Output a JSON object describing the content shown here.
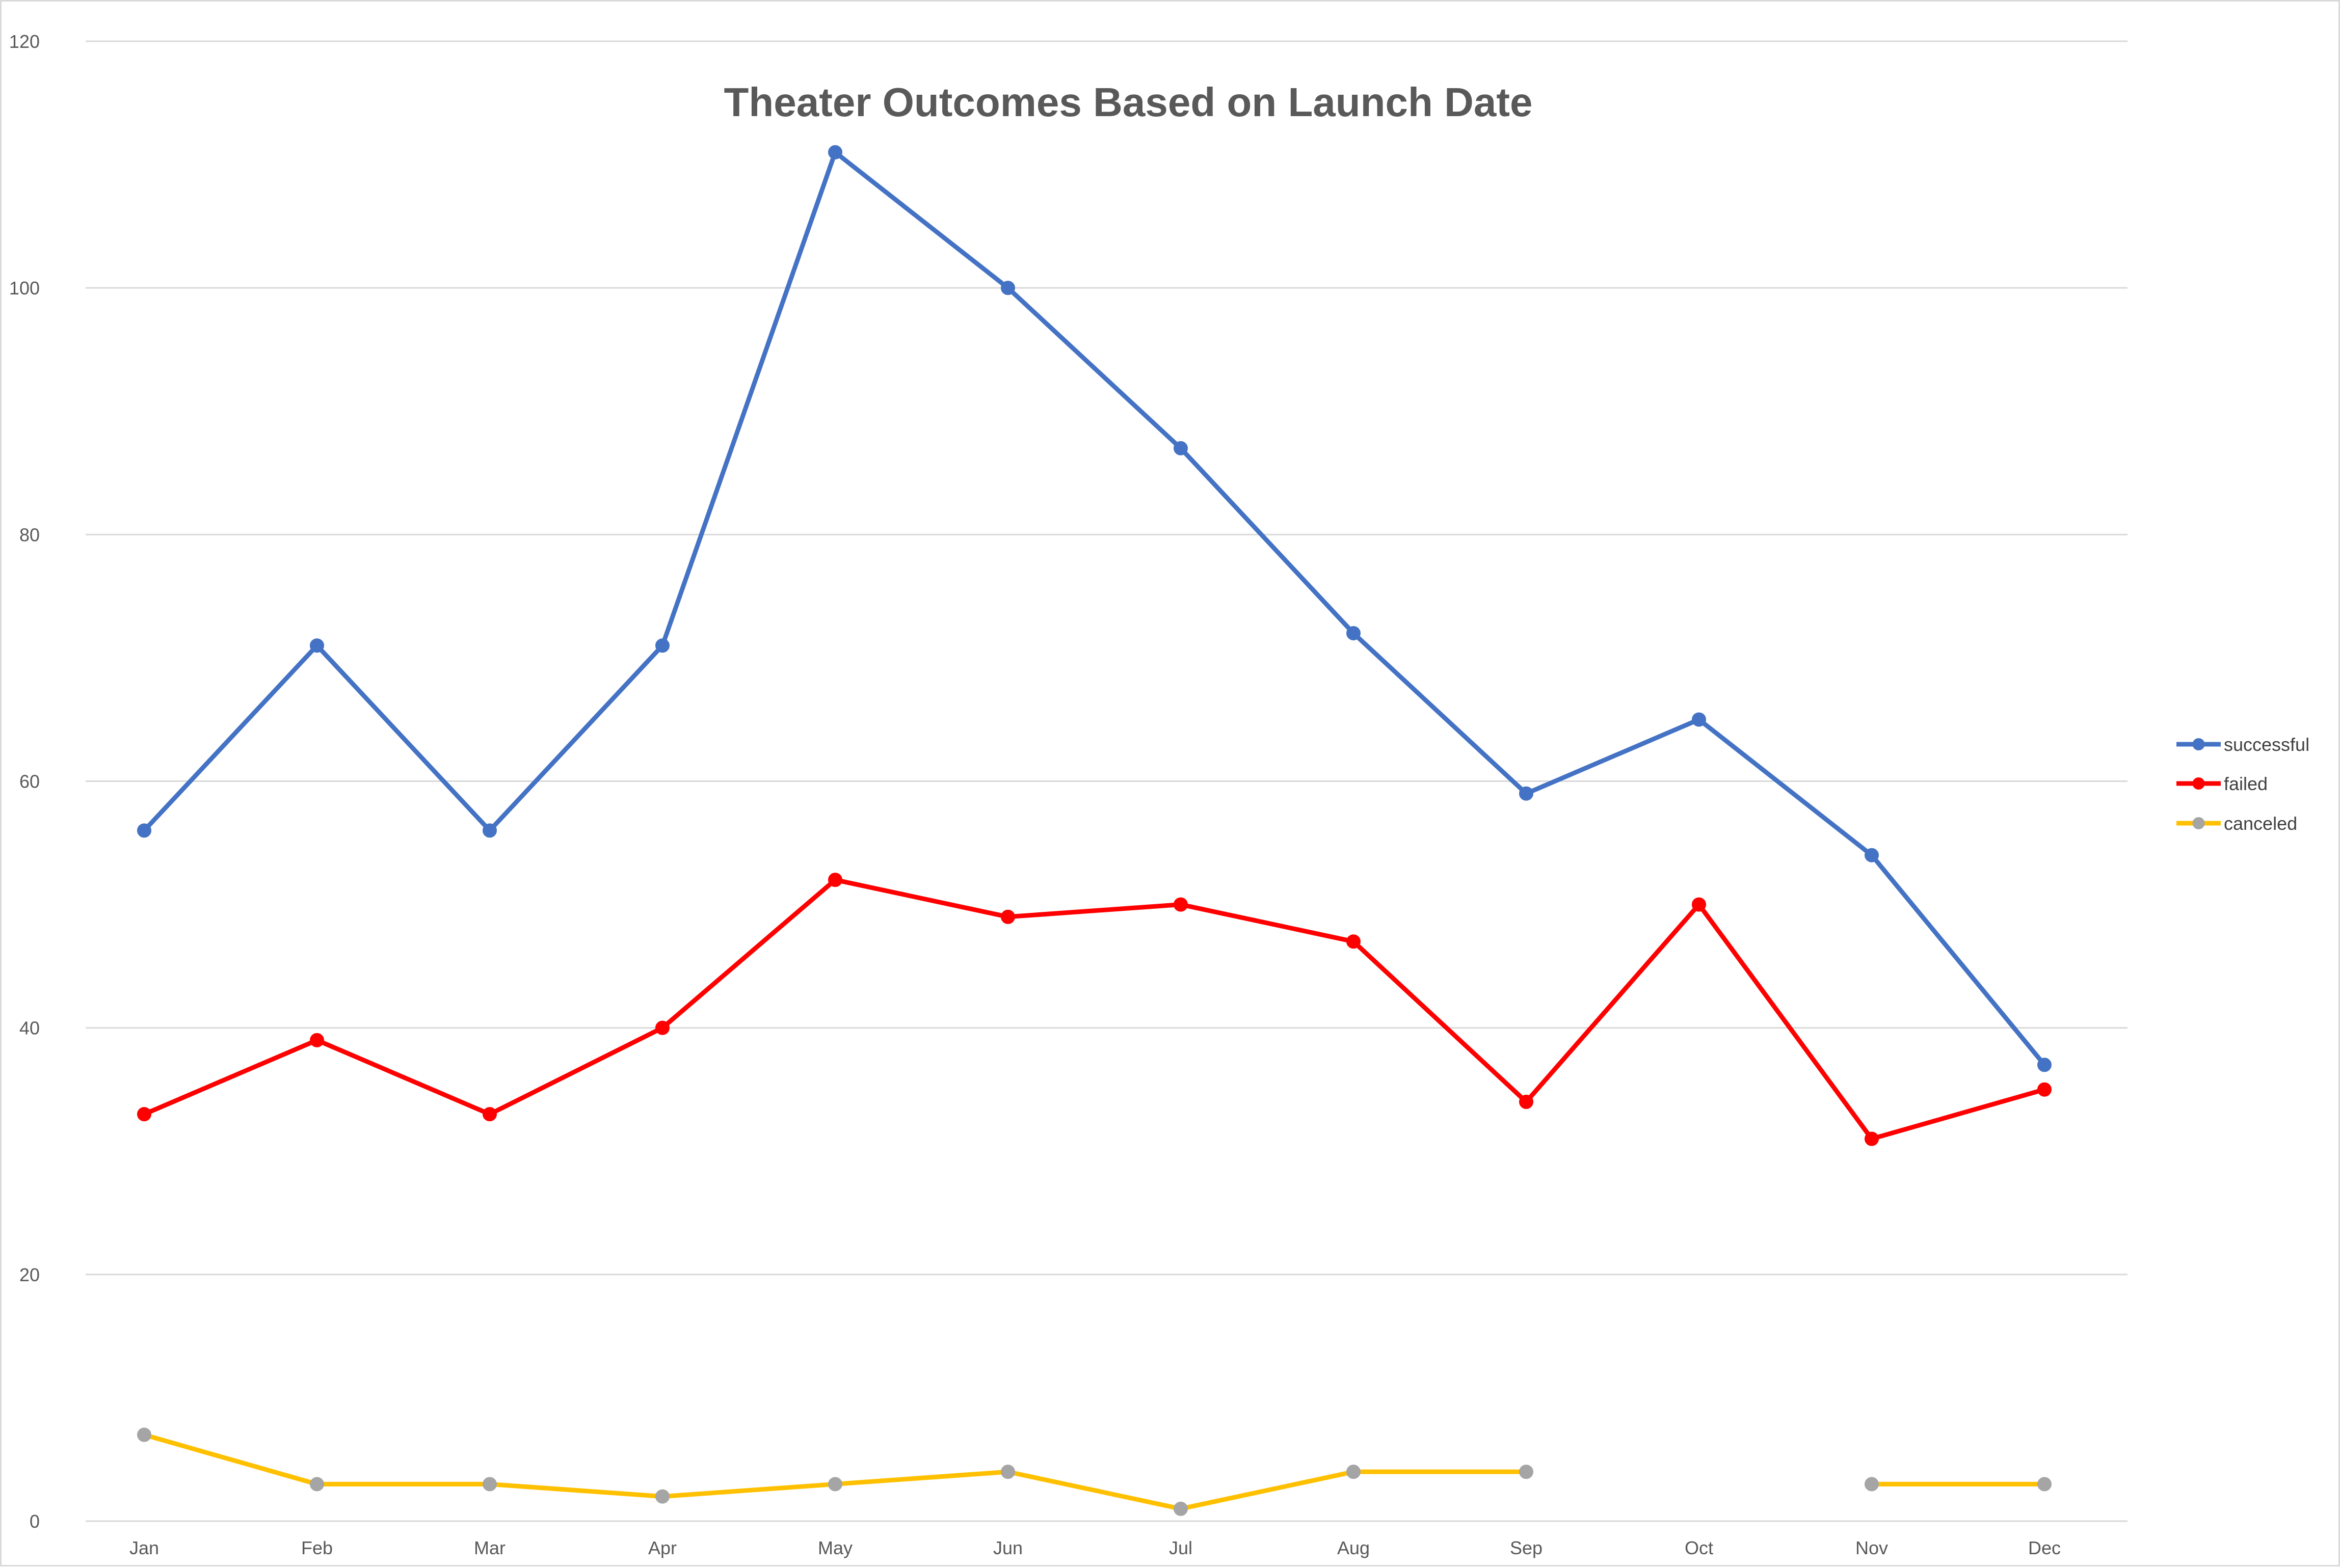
{
  "chart_data": {
    "type": "line",
    "title": "Theater Outcomes Based on Launch Date",
    "xlabel": "",
    "ylabel": "",
    "categories": [
      "Jan",
      "Feb",
      "Mar",
      "Apr",
      "May",
      "Jun",
      "Jul",
      "Aug",
      "Sep",
      "Oct",
      "Nov",
      "Dec"
    ],
    "ylim": [
      0,
      120
    ],
    "yticks": [
      0,
      20,
      40,
      60,
      80,
      100,
      120
    ],
    "grid": true,
    "legend_position": "right",
    "series": [
      {
        "name": "successful",
        "color": "#4472C4",
        "marker_color": "#4472C4",
        "values": [
          56,
          71,
          56,
          71,
          111,
          100,
          87,
          72,
          59,
          65,
          54,
          37
        ]
      },
      {
        "name": "failed",
        "color": "#FF0000",
        "marker_color": "#FF0000",
        "values": [
          33,
          39,
          33,
          40,
          52,
          49,
          50,
          47,
          34,
          50,
          31,
          35
        ]
      },
      {
        "name": "canceled",
        "color": "#FFC000",
        "marker_color": "#A5A5A5",
        "values": [
          7,
          3,
          3,
          2,
          3,
          4,
          1,
          4,
          4,
          null,
          3,
          3
        ]
      }
    ]
  }
}
